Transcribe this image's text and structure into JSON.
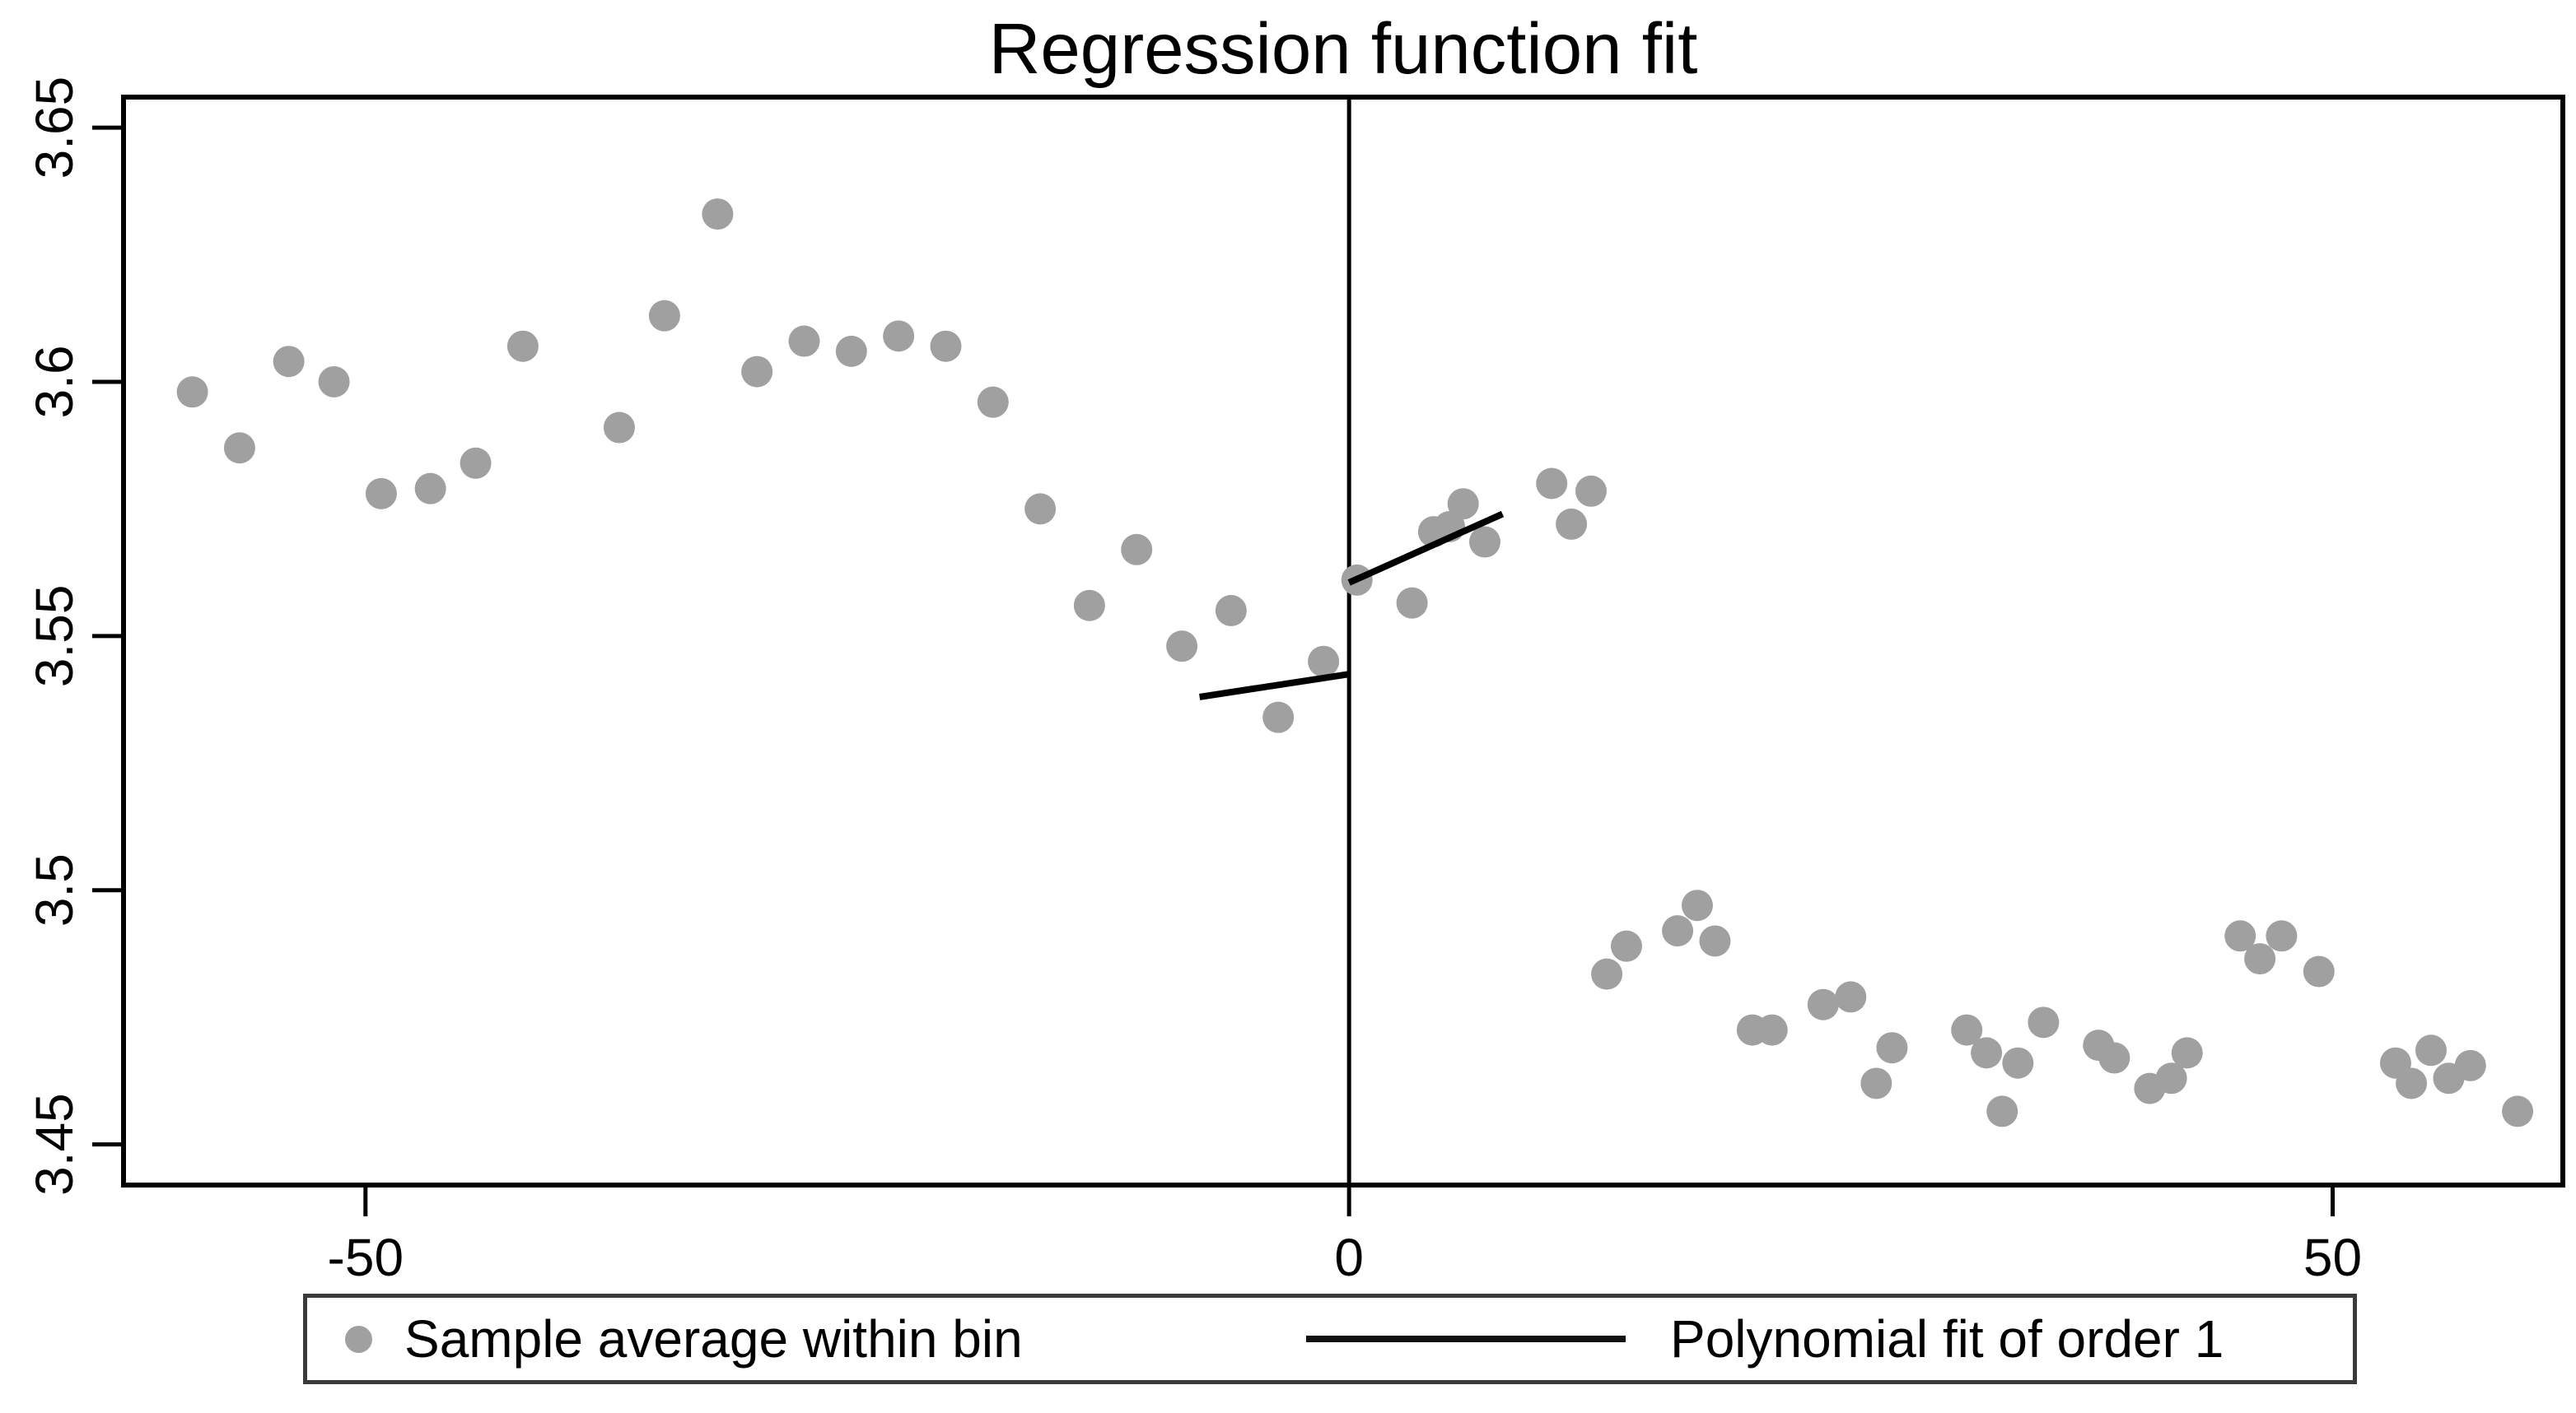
{
  "chart_data": {
    "type": "scatter",
    "title": "Regression function fit",
    "xlabel": "",
    "ylabel": "",
    "xlim": [
      -62.3,
      61.7
    ],
    "ylim": [
      3.442,
      3.656
    ],
    "grid": false,
    "cutoff_x": 0,
    "x_ticks": [
      {
        "value": -50,
        "label": "-50"
      },
      {
        "value": 0,
        "label": "0"
      },
      {
        "value": 50,
        "label": "50"
      }
    ],
    "y_ticks": [
      {
        "value": 3.45,
        "label": "3.45"
      },
      {
        "value": 3.5,
        "label": "3.5"
      },
      {
        "value": 3.55,
        "label": "3.55"
      },
      {
        "value": 3.6,
        "label": "3.6"
      },
      {
        "value": 3.65,
        "label": "3.65"
      }
    ],
    "colors": {
      "scatter": "#a0a0a0",
      "fit_line": "#000000",
      "cutoff_line": "#000000",
      "frame": "#000000",
      "text": "#000000",
      "background": "#ffffff",
      "legend_border": "#3a3a3a"
    },
    "legend": {
      "position": "bottom",
      "items": [
        {
          "marker": "dot",
          "label": "Sample average within bin"
        },
        {
          "marker": "line",
          "label": "Polynomial fit of order 1"
        }
      ]
    },
    "series": [
      {
        "name": "Sample average within bin",
        "type": "scatter",
        "color": "#a0a0a0",
        "points": [
          [
            -58.8,
            3.598
          ],
          [
            -56.4,
            3.587
          ],
          [
            -53.9,
            3.604
          ],
          [
            -51.6,
            3.6
          ],
          [
            -49.2,
            3.578
          ],
          [
            -46.7,
            3.579
          ],
          [
            -44.4,
            3.584
          ],
          [
            -42.0,
            3.607
          ],
          [
            -37.1,
            3.591
          ],
          [
            -34.8,
            3.613
          ],
          [
            -32.1,
            3.633
          ],
          [
            -30.1,
            3.602
          ],
          [
            -27.7,
            3.608
          ],
          [
            -25.3,
            3.606
          ],
          [
            -22.9,
            3.609
          ],
          [
            -20.5,
            3.607
          ],
          [
            -18.1,
            3.596
          ],
          [
            -15.7,
            3.575
          ],
          [
            -13.2,
            3.556
          ],
          [
            -10.8,
            3.567
          ],
          [
            -8.5,
            3.548
          ],
          [
            -6.0,
            3.555
          ],
          [
            -3.6,
            3.534
          ],
          [
            -1.3,
            3.545
          ],
          [
            0.4,
            3.561
          ],
          [
            3.2,
            3.5565
          ],
          [
            4.3,
            3.5705
          ],
          [
            5.1,
            3.5715
          ],
          [
            5.8,
            3.576
          ],
          [
            6.9,
            3.5685
          ],
          [
            10.3,
            3.58
          ],
          [
            11.3,
            3.572
          ],
          [
            12.3,
            3.5785
          ],
          [
            13.1,
            3.4835
          ],
          [
            14.1,
            3.489
          ],
          [
            16.7,
            3.492
          ],
          [
            17.7,
            3.497
          ],
          [
            18.6,
            3.49
          ],
          [
            20.5,
            3.4725
          ],
          [
            21.5,
            3.4725
          ],
          [
            24.1,
            3.4775
          ],
          [
            25.5,
            3.479
          ],
          [
            26.8,
            3.462
          ],
          [
            27.6,
            3.469
          ],
          [
            31.4,
            3.4725
          ],
          [
            32.4,
            3.468
          ],
          [
            33.2,
            3.4565
          ],
          [
            34.0,
            3.466
          ],
          [
            35.3,
            3.474
          ],
          [
            38.1,
            3.4695
          ],
          [
            38.9,
            3.467
          ],
          [
            40.7,
            3.461
          ],
          [
            41.8,
            3.463
          ],
          [
            42.6,
            3.468
          ],
          [
            45.3,
            3.491
          ],
          [
            46.3,
            3.4865
          ],
          [
            47.4,
            3.491
          ],
          [
            49.3,
            3.484
          ],
          [
            53.2,
            3.466
          ],
          [
            54.0,
            3.462
          ],
          [
            55.0,
            3.4685
          ],
          [
            55.9,
            3.463
          ],
          [
            57.0,
            3.4655
          ],
          [
            59.4,
            3.4565
          ]
        ]
      },
      {
        "name": "Polynomial fit of order 1",
        "type": "line",
        "color": "#000000",
        "segments": [
          [
            [
              -7.6,
              3.538
            ],
            [
              0.0,
              3.5425
            ]
          ],
          [
            [
              0.0,
              3.5605
            ],
            [
              7.8,
              3.574
            ]
          ]
        ]
      }
    ]
  }
}
